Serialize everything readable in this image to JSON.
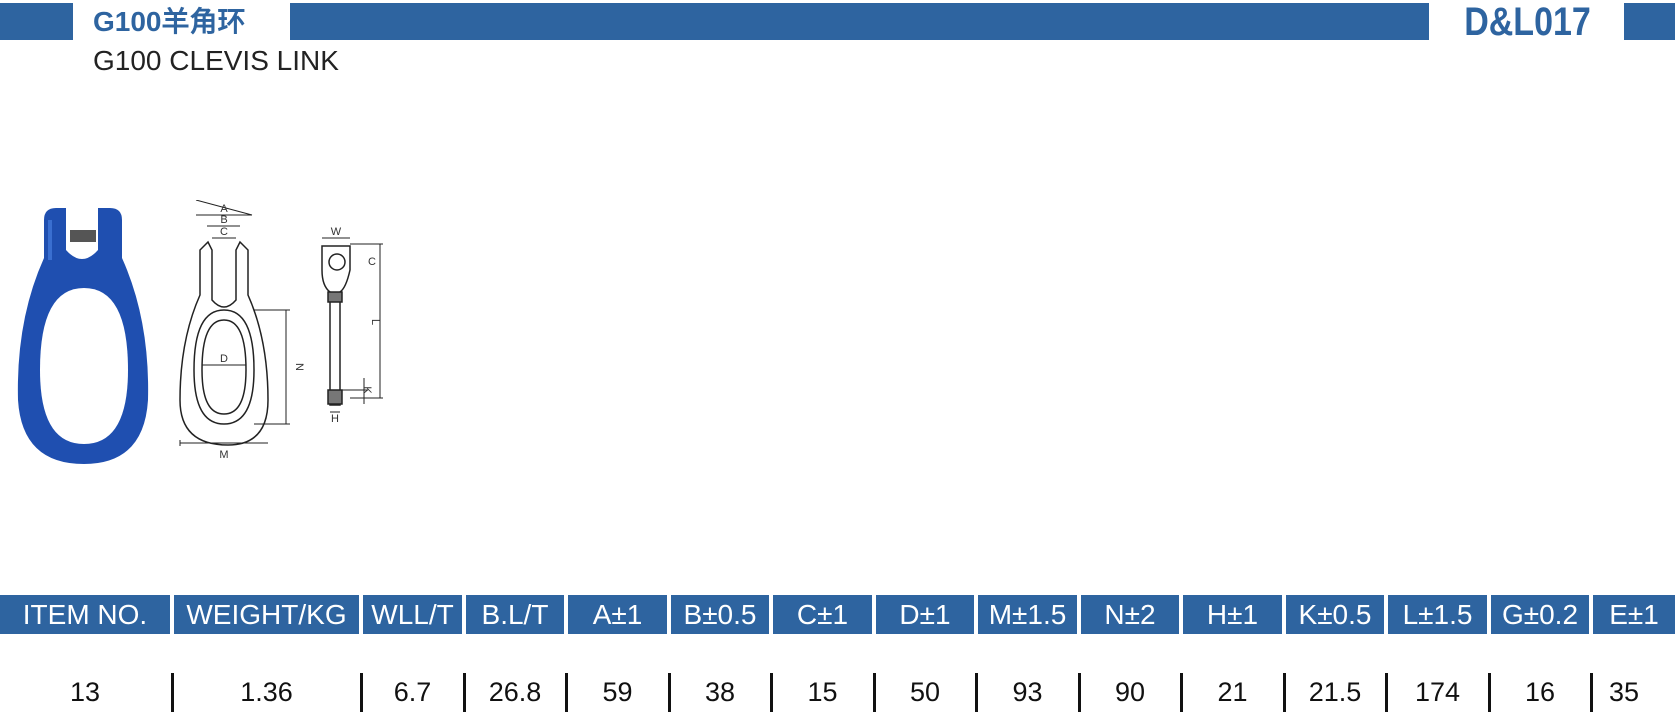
{
  "header": {
    "title": "G100羊角环",
    "subtitle": "G100 CLEVIS LINK",
    "code": "D&L017"
  },
  "drawing": {
    "front_labels": [
      "A",
      "B",
      "C",
      "D",
      "N",
      "M"
    ],
    "side_labels": [
      "W",
      "C",
      "L",
      "K",
      "H"
    ]
  },
  "table": {
    "columns": [
      "ITEM NO.",
      "WEIGHT/KG",
      "WLL/T",
      "B.L/T",
      "A±1",
      "B±0.5",
      "C±1",
      "D±1",
      "M±1.5",
      "N±2",
      "H±1",
      "K±0.5",
      "L±1.5",
      "G±0.2",
      "E±1"
    ],
    "rows": [
      [
        "13",
        "1.36",
        "6.7",
        "26.8",
        "59",
        "38",
        "15",
        "50",
        "93",
        "90",
        "21",
        "21.5",
        "174",
        "16",
        "35"
      ]
    ]
  }
}
